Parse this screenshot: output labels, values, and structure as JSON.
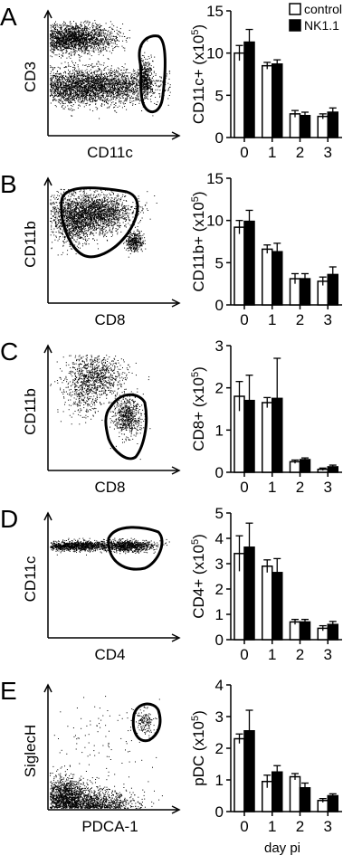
{
  "legend": {
    "entries": [
      {
        "label": "control",
        "fill": "#ffffff"
      },
      {
        "label": "NK1.1",
        "fill": "#000000"
      }
    ]
  },
  "x_title": "day pi",
  "panels": [
    {
      "letter": "A",
      "flow": {
        "xlabel": "CD11c",
        "ylabel": "CD3",
        "dot_color": "#000000"
      },
      "chart_ylabel": "CD11c+ (x10<sup>5</sup>)",
      "chart_ylabel_text": "CD11c+ (x105)"
    },
    {
      "letter": "B",
      "flow": {
        "xlabel": "CD8",
        "ylabel": "CD11b",
        "dot_color": "#000000"
      },
      "chart_ylabel_text": "CD11b+ (x105)"
    },
    {
      "letter": "C",
      "flow": {
        "xlabel": "CD8",
        "ylabel": "CD11b",
        "dot_color": "#000000"
      },
      "chart_ylabel_text": "CD8+ (x105)"
    },
    {
      "letter": "D",
      "flow": {
        "xlabel": "CD4",
        "ylabel": "CD11c",
        "dot_color": "#000000"
      },
      "chart_ylabel_text": "CD4+ (x105)"
    },
    {
      "letter": "E",
      "flow": {
        "xlabel": "PDCA-1",
        "ylabel": "SiglecH",
        "dot_color": "#000000"
      },
      "chart_ylabel_text": "pDC (x105)"
    }
  ],
  "chart_data": [
    {
      "type": "bar",
      "ylabel": "CD11c+ (x105)",
      "categories": [
        "0",
        "1",
        "2",
        "3"
      ],
      "ylim": [
        0,
        15
      ],
      "yticks": [
        0,
        5,
        10,
        15
      ],
      "series": [
        {
          "name": "control",
          "values": [
            10.0,
            8.5,
            2.8,
            2.5
          ],
          "errors": [
            0.9,
            0.4,
            0.4,
            0.3
          ]
        },
        {
          "name": "NK1.1",
          "values": [
            11.3,
            8.7,
            2.6,
            3.0
          ],
          "errors": [
            1.5,
            0.5,
            0.4,
            0.5
          ]
        }
      ]
    },
    {
      "type": "bar",
      "ylabel": "CD11b+ (x105)",
      "categories": [
        "0",
        "1",
        "2",
        "3"
      ],
      "ylim": [
        0,
        15
      ],
      "yticks": [
        0,
        5,
        10,
        15
      ],
      "series": [
        {
          "name": "control",
          "values": [
            9.2,
            6.6,
            3.1,
            2.8
          ],
          "errors": [
            0.8,
            0.5,
            0.6,
            0.5
          ]
        },
        {
          "name": "NK1.1",
          "values": [
            9.9,
            6.3,
            3.1,
            3.6
          ],
          "errors": [
            1.3,
            1.0,
            0.6,
            0.9
          ]
        }
      ]
    },
    {
      "type": "bar",
      "ylabel": "CD8+ (x105)",
      "categories": [
        "0",
        "1",
        "2",
        "3"
      ],
      "ylim": [
        0,
        3
      ],
      "yticks": [
        0,
        1,
        2,
        3
      ],
      "series": [
        {
          "name": "control",
          "values": [
            1.8,
            1.65,
            0.25,
            0.07
          ],
          "errors": [
            0.35,
            0.12,
            0.04,
            0.03
          ]
        },
        {
          "name": "NK1.1",
          "values": [
            1.7,
            1.75,
            0.3,
            0.13
          ],
          "errors": [
            0.6,
            0.95,
            0.04,
            0.04
          ]
        }
      ]
    },
    {
      "type": "bar",
      "ylabel": "CD4+ (x105)",
      "categories": [
        "0",
        "1",
        "2",
        "3"
      ],
      "ylim": [
        0,
        5
      ],
      "yticks": [
        0,
        1,
        2,
        3,
        4,
        5
      ],
      "series": [
        {
          "name": "control",
          "values": [
            3.4,
            2.9,
            0.7,
            0.45
          ],
          "errors": [
            0.7,
            0.25,
            0.1,
            0.1
          ]
        },
        {
          "name": "NK1.1",
          "values": [
            3.65,
            2.65,
            0.7,
            0.6
          ],
          "errors": [
            0.95,
            0.55,
            0.1,
            0.12
          ]
        }
      ]
    },
    {
      "type": "bar",
      "ylabel": "pDC (x105)",
      "categories": [
        "0",
        "1",
        "2",
        "3"
      ],
      "ylim": [
        0,
        4
      ],
      "yticks": [
        0,
        1,
        2,
        3,
        4
      ],
      "xlabel": "day pi",
      "series": [
        {
          "name": "control",
          "values": [
            2.3,
            0.95,
            1.1,
            0.35
          ],
          "errors": [
            0.15,
            0.2,
            0.1,
            0.06
          ]
        },
        {
          "name": "NK1.1",
          "values": [
            2.55,
            1.25,
            0.75,
            0.5
          ],
          "errors": [
            0.65,
            0.2,
            0.15,
            0.06
          ]
        }
      ]
    }
  ]
}
